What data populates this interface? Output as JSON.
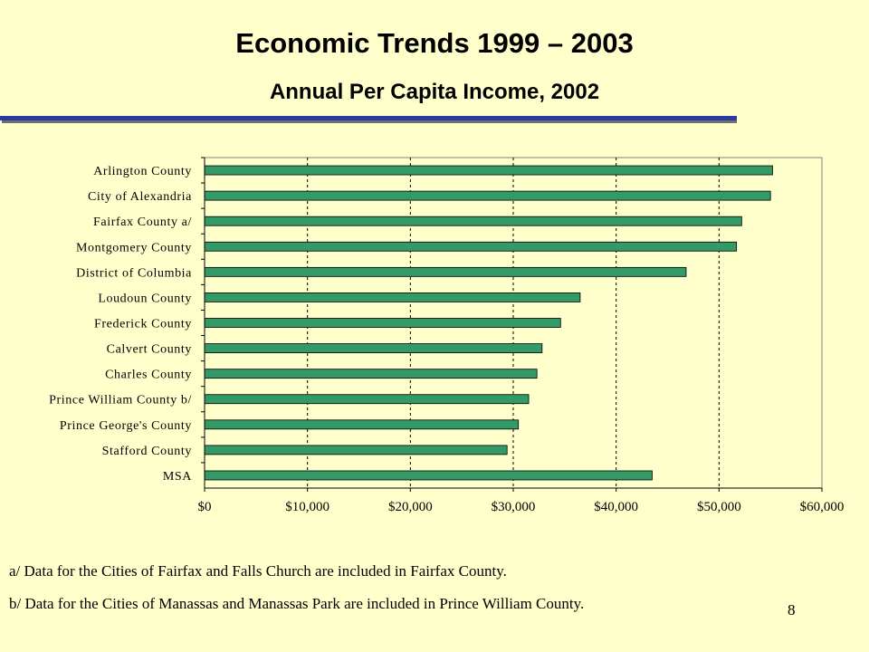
{
  "slide": {
    "title": "Economic Trends  1999 – 2003",
    "subtitle": "Annual Per Capita Income, 2002",
    "notes": [
      "a/ Data for the Cities of Fairfax and Falls Church are included in Fairfax County.",
      "b/ Data for the Cities of Manassas and Manassas Park are included in Prince William County."
    ],
    "page_number": "8"
  },
  "colors": {
    "background": "#ffffcc",
    "bar": "#339966",
    "rule": "#2b3aa0"
  },
  "chart_data": {
    "type": "bar",
    "orientation": "horizontal",
    "categories": [
      "Arlington County",
      "City of Alexandria",
      "Fairfax County a/",
      "Montgomery County",
      "District of Columbia",
      "Loudoun County",
      "Frederick County",
      "Calvert County",
      "Charles County",
      "Prince William County b/",
      "Prince George's County",
      "Stafford County",
      "MSA"
    ],
    "values": [
      55200,
      55000,
      52200,
      51700,
      46800,
      36500,
      34600,
      32800,
      32300,
      31500,
      30500,
      29400,
      43500
    ],
    "xlim": [
      0,
      60000
    ],
    "xticks": [
      "$0",
      "$10,000",
      "$20,000",
      "$30,000",
      "$40,000",
      "$50,000",
      "$60,000"
    ],
    "grid": "vertical dashed",
    "legend": "none"
  }
}
